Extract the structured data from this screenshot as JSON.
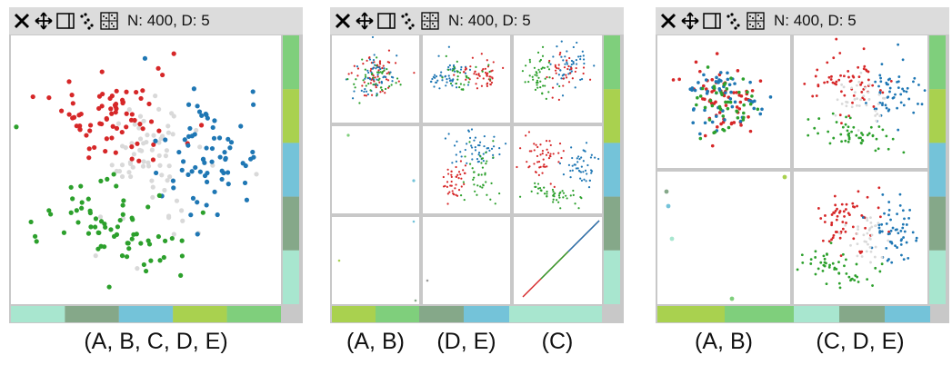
{
  "windows": [
    {
      "status": "N: 400, D: 5",
      "caption": "(A, B, C, D, E)",
      "groups": [
        "A, B, C, D, E"
      ]
    },
    {
      "status": "N: 400, D: 5",
      "captions": [
        "(A, B)",
        "(D, E)",
        "(C)"
      ],
      "groups": [
        "A, B",
        "D, E",
        "C"
      ]
    },
    {
      "status": "N: 400, D: 5",
      "captions": [
        "(A, B)",
        "(C, D, E)"
      ],
      "groups": [
        "A, B",
        "C, D, E"
      ]
    }
  ],
  "toolbar_icons": [
    "close-icon",
    "move-icon",
    "panel-icon",
    "scatter-icon",
    "matrix-icon"
  ],
  "dimension_colors": {
    "A": "#a8e6cf",
    "B": "#85a889",
    "C": "#74c3d9",
    "D": "#a9d14f",
    "E": "#7fcf7c"
  },
  "cluster_colors": {
    "red": "#d62728",
    "blue": "#1f77b4",
    "green": "#2ca02c",
    "gray": "#d9d9d9"
  }
}
